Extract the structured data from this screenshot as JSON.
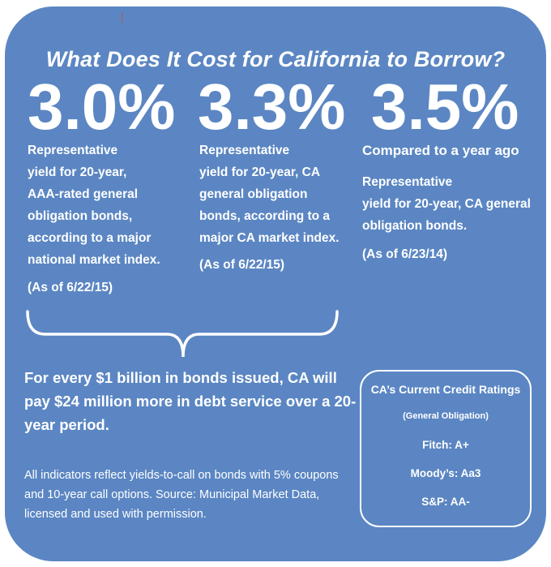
{
  "title": "What Does It Cost for California to Borrow?",
  "stats": [
    {
      "value": "3.0%",
      "heading": "",
      "lines": [
        "Representative",
        "yield for 20-year,",
        "AAA-rated general",
        "obligation bonds,",
        "according to a major",
        "national market index."
      ],
      "date": "(As of 6/22/15)"
    },
    {
      "value": "3.3%",
      "heading": "",
      "lines": [
        "Representative",
        "yield for 20-year, CA",
        "general obligation",
        "bonds, according to a",
        "major CA market index."
      ],
      "date": "(As of 6/22/15)"
    },
    {
      "value": "3.5%",
      "heading": "Compared to a year ago",
      "lines": [
        "Representative",
        "yield for 20-year, CA general",
        "obligation bonds."
      ],
      "date": "(As of 6/23/14)"
    }
  ],
  "impact": "For every $1 billion in bonds issued, CA will pay $24 million more in debt service over a 20-year period.",
  "note": "All indicators reflect yields-to-call on bonds with 5% coupons and 10-year call options.  Source:  Municipal Market Data, licensed and used with permission.",
  "ratings": {
    "heading": "CA’s Current Credit Ratings",
    "subheading": "(General Obligation)",
    "fitch": "Fitch: A+",
    "moodys": "Moody’s: Aa3",
    "sp": "S&P: AA-"
  },
  "colors": {
    "panel": "#5b86c3",
    "text": "#ffffff",
    "tick": "#c0504d"
  }
}
